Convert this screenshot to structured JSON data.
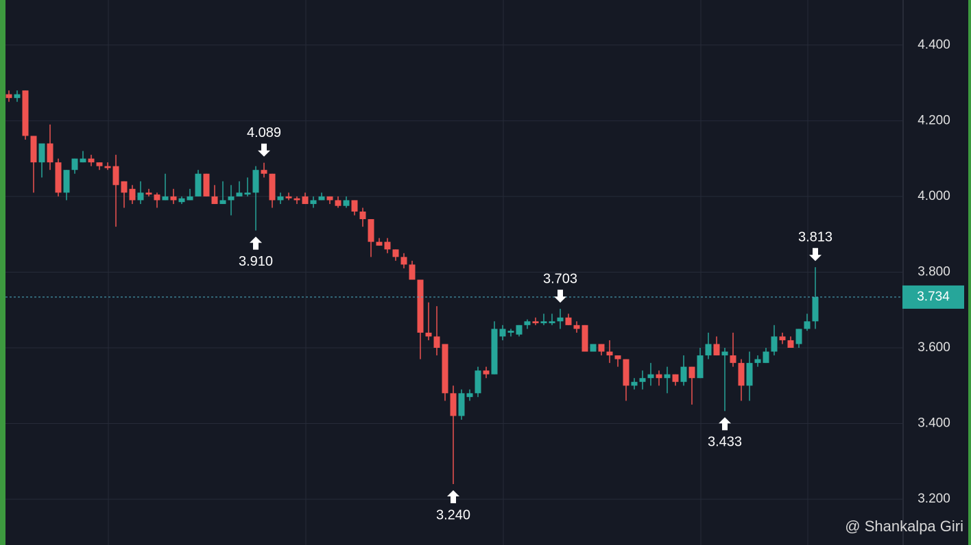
{
  "chart_data": {
    "type": "candlestick",
    "open": [
      4.27,
      4.26,
      4.28,
      4.16,
      4.09,
      4.14,
      4.09,
      4.01,
      4.07,
      4.09,
      4.1,
      4.09,
      4.08,
      4.08,
      4.04,
      4.02,
      3.99,
      4.01,
      4.005,
      3.99,
      4.0,
      3.985,
      3.99,
      4.0,
      4.06,
      4.0,
      3.98,
      3.99,
      4.0,
      4.005,
      4.01,
      4.07,
      4.06,
      3.99,
      4.0,
      3.995,
      4.0,
      3.98,
      3.99,
      4.0,
      3.99,
      3.975,
      3.99,
      3.96,
      3.94,
      3.88,
      3.88,
      3.86,
      3.84,
      3.82,
      3.78,
      3.64,
      3.63,
      3.61,
      3.48,
      3.42,
      3.47,
      3.48,
      3.54,
      3.53,
      3.63,
      3.64,
      3.635,
      3.66,
      3.67,
      3.665,
      3.665,
      3.67,
      3.68,
      3.66,
      3.66,
      3.59,
      3.61,
      3.59,
      3.58,
      3.57,
      3.5,
      3.51,
      3.52,
      3.53,
      3.52,
      3.53,
      3.51,
      3.55,
      3.52,
      3.58,
      3.61,
      3.58,
      3.58,
      3.56,
      3.5,
      3.56,
      3.56,
      3.59,
      3.63,
      3.62,
      3.61,
      3.65,
      3.67
    ],
    "high": [
      4.28,
      4.28,
      4.28,
      4.16,
      4.14,
      4.19,
      4.1,
      4.07,
      4.1,
      4.12,
      4.11,
      4.09,
      4.09,
      4.11,
      4.04,
      4.03,
      4.04,
      4.02,
      4.01,
      4.06,
      4.02,
      4.0,
      4.02,
      4.07,
      4.06,
      4.03,
      4.04,
      4.03,
      4.04,
      4.05,
      4.08,
      4.089,
      4.06,
      4.01,
      4.01,
      4.0,
      4.01,
      4.0,
      4.01,
      4.0,
      4.0,
      4.0,
      3.99,
      3.97,
      3.94,
      3.89,
      3.89,
      3.86,
      3.85,
      3.83,
      3.78,
      3.72,
      3.71,
      3.61,
      3.5,
      3.49,
      3.49,
      3.55,
      3.55,
      3.67,
      3.66,
      3.65,
      3.66,
      3.675,
      3.68,
      3.69,
      3.69,
      3.703,
      3.69,
      3.67,
      3.66,
      3.61,
      3.61,
      3.62,
      3.58,
      3.57,
      3.52,
      3.54,
      3.56,
      3.54,
      3.55,
      3.53,
      3.58,
      3.55,
      3.6,
      3.64,
      3.63,
      3.6,
      3.64,
      3.57,
      3.59,
      3.58,
      3.6,
      3.66,
      3.64,
      3.63,
      3.65,
      3.69,
      3.813
    ],
    "low": [
      4.25,
      4.25,
      4.15,
      4.01,
      4.05,
      4.07,
      4.0,
      3.99,
      4.06,
      4.09,
      4.08,
      4.07,
      4.07,
      3.92,
      3.97,
      3.98,
      3.98,
      4.0,
      3.97,
      3.99,
      3.98,
      3.98,
      3.99,
      4.0,
      4.0,
      3.98,
      3.98,
      3.95,
      4.0,
      4.0,
      3.91,
      4.05,
      3.97,
      3.98,
      3.99,
      3.98,
      3.98,
      3.97,
      3.99,
      3.98,
      3.97,
      3.97,
      3.95,
      3.92,
      3.84,
      3.87,
      3.85,
      3.83,
      3.81,
      3.78,
      3.57,
      3.62,
      3.58,
      3.46,
      3.24,
      3.41,
      3.46,
      3.47,
      3.52,
      3.53,
      3.62,
      3.63,
      3.63,
      3.65,
      3.66,
      3.66,
      3.66,
      3.65,
      3.66,
      3.64,
      3.59,
      3.59,
      3.58,
      3.56,
      3.55,
      3.46,
      3.49,
      3.49,
      3.5,
      3.5,
      3.48,
      3.5,
      3.5,
      3.45,
      3.52,
      3.57,
      3.58,
      3.433,
      3.55,
      3.46,
      3.46,
      3.55,
      3.56,
      3.58,
      3.61,
      3.6,
      3.6,
      3.645,
      3.65
    ],
    "close": [
      4.26,
      4.27,
      4.16,
      4.09,
      4.14,
      4.09,
      4.01,
      4.07,
      4.1,
      4.1,
      4.09,
      4.08,
      4.075,
      4.03,
      4.01,
      3.99,
      4.01,
      4.005,
      3.99,
      4.0,
      3.99,
      3.995,
      4.0,
      4.06,
      4.0,
      3.98,
      3.99,
      4.0,
      4.01,
      4.01,
      4.07,
      4.06,
      3.99,
      4.0,
      3.995,
      3.99,
      3.98,
      3.99,
      4.0,
      3.99,
      3.975,
      3.99,
      3.96,
      3.94,
      3.88,
      3.87,
      3.86,
      3.84,
      3.82,
      3.78,
      3.64,
      3.63,
      3.6,
      3.48,
      3.42,
      3.48,
      3.48,
      3.54,
      3.53,
      3.65,
      3.65,
      3.645,
      3.66,
      3.67,
      3.665,
      3.67,
      3.67,
      3.68,
      3.66,
      3.65,
      3.59,
      3.61,
      3.59,
      3.58,
      3.57,
      3.5,
      3.51,
      3.52,
      3.53,
      3.52,
      3.53,
      3.51,
      3.55,
      3.52,
      3.58,
      3.61,
      3.58,
      3.59,
      3.56,
      3.5,
      3.56,
      3.57,
      3.59,
      3.63,
      3.62,
      3.6,
      3.65,
      3.67,
      3.734
    ],
    "up_color": "#26a69a",
    "down_color": "#ef5350",
    "ylim": [
      3.079,
      4.519
    ],
    "yticks": [
      {
        "value": 4.4,
        "label": "4.400"
      },
      {
        "value": 4.2,
        "label": "4.200"
      },
      {
        "value": 4.0,
        "label": "4.000"
      },
      {
        "value": 3.8,
        "label": "3.800"
      },
      {
        "value": 3.6,
        "label": "3.600"
      },
      {
        "value": 3.4,
        "label": "3.400"
      },
      {
        "value": 3.2,
        "label": "3.200"
      }
    ],
    "grid": true,
    "annotations": [
      {
        "value": 4.089,
        "label": "4.089"
      },
      {
        "value": 3.91,
        "label": "3.910"
      },
      {
        "value": 3.703,
        "label": "3.703"
      },
      {
        "value": 3.24,
        "label": "3.240"
      },
      {
        "value": 3.433,
        "label": "3.433"
      },
      {
        "value": 3.813,
        "label": "3.813"
      }
    ],
    "last_price": {
      "value": 3.734,
      "label": "3.734"
    },
    "watermark": "@ Shankalpa Giri"
  }
}
